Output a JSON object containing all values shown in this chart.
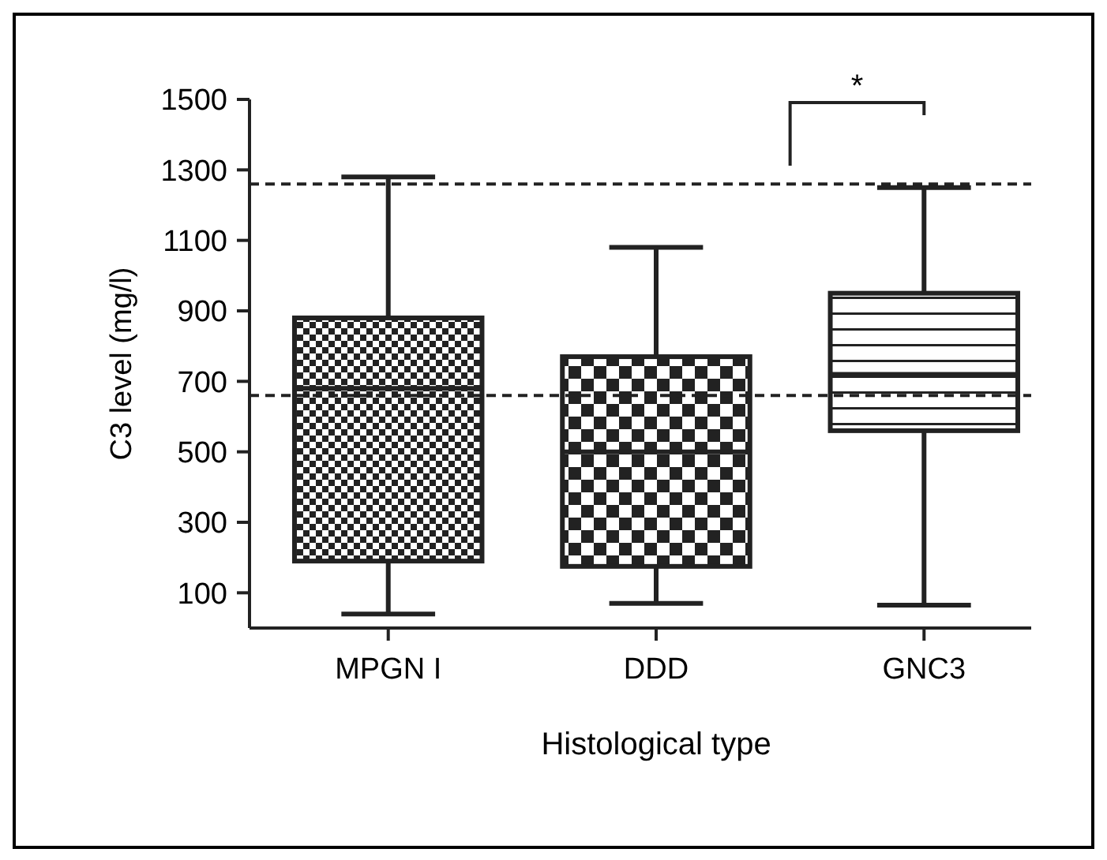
{
  "chart_data": {
    "type": "box",
    "xlabel": "Histological type",
    "ylabel": "C3 level (mg/l)",
    "categories": [
      "MPGN I",
      "DDD",
      "GNC3"
    ],
    "boxes": [
      {
        "low": 40,
        "q1": 190,
        "median": 680,
        "q3": 880,
        "high": 1280
      },
      {
        "low": 70,
        "q1": 175,
        "median": 500,
        "q3": 770,
        "high": 1080
      },
      {
        "low": 65,
        "q1": 560,
        "median": 720,
        "q3": 950,
        "high": 1250
      }
    ],
    "colors": [
      "#222222",
      "#222222",
      "#222222"
    ],
    "ylim": [
      0,
      1500
    ],
    "yticks": [
      100,
      300,
      500,
      700,
      900,
      1100,
      1300,
      1500
    ],
    "ref_lines": [
      {
        "axis": "y",
        "value": 1260,
        "line_style": "dashed"
      },
      {
        "axis": "y",
        "value": 660,
        "line_style": "dashed"
      }
    ],
    "annotations": [
      "*"
    ],
    "grid": false
  }
}
